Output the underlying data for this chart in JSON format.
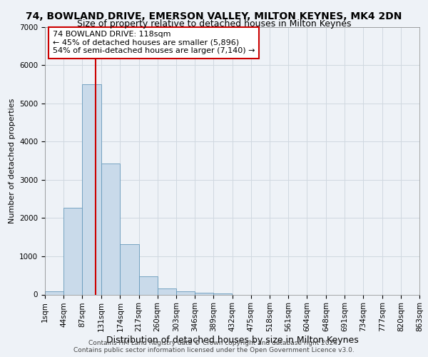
{
  "title": "74, BOWLAND DRIVE, EMERSON VALLEY, MILTON KEYNES, MK4 2DN",
  "subtitle": "Size of property relative to detached houses in Milton Keynes",
  "xlabel": "Distribution of detached houses by size in Milton Keynes",
  "ylabel": "Number of detached properties",
  "bar_color": "#c9daea",
  "bar_edgecolor": "#6699bb",
  "grid_color": "#d0d8e0",
  "background_color": "#eef2f7",
  "vline_x": 118,
  "vline_color": "#cc0000",
  "annotation_text": "74 BOWLAND DRIVE: 118sqm\n← 45% of detached houses are smaller (5,896)\n54% of semi-detached houses are larger (7,140) →",
  "annotation_box_color": "#ffffff",
  "annotation_box_edgecolor": "#cc0000",
  "footer_line1": "Contains HM Land Registry data © Crown copyright and database right 2024.",
  "footer_line2": "Contains public sector information licensed under the Open Government Licence v3.0.",
  "bin_edges": [
    1,
    44,
    87,
    131,
    174,
    217,
    260,
    303,
    346,
    389,
    432,
    475,
    518,
    561,
    604,
    648,
    691,
    734,
    777,
    820,
    863
  ],
  "bar_heights": [
    75,
    2270,
    5490,
    3430,
    1310,
    470,
    155,
    90,
    55,
    30,
    0,
    0,
    0,
    0,
    0,
    0,
    0,
    0,
    0,
    0
  ],
  "ylim": [
    0,
    7000
  ],
  "yticks": [
    0,
    1000,
    2000,
    3000,
    4000,
    5000,
    6000,
    7000
  ],
  "title_fontsize": 10,
  "subtitle_fontsize": 9,
  "ylabel_fontsize": 8,
  "xlabel_fontsize": 9,
  "tick_fontsize": 7.5,
  "annotation_fontsize": 8
}
